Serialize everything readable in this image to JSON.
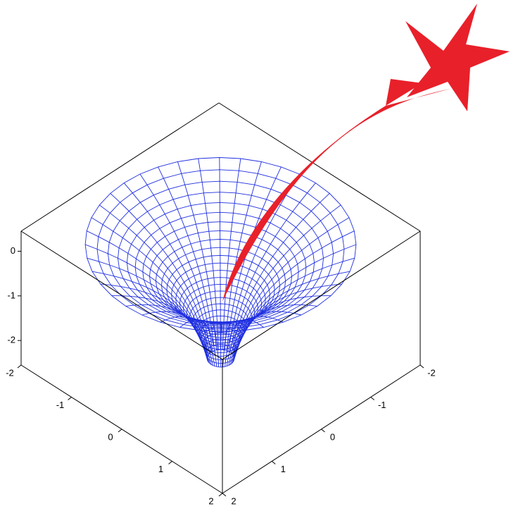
{
  "chart_data": {
    "type": "surface3d",
    "color": "#1f2fe0",
    "xlim": [
      -2,
      2
    ],
    "xticks": [
      -2,
      -1,
      0,
      1,
      2
    ],
    "ylim": [
      -2,
      2
    ],
    "yticks": [
      -2,
      -1,
      0,
      1,
      2
    ],
    "zlim": [
      -2.55,
      0.45
    ],
    "zticks": [
      0,
      -1,
      -2
    ]
  }
}
